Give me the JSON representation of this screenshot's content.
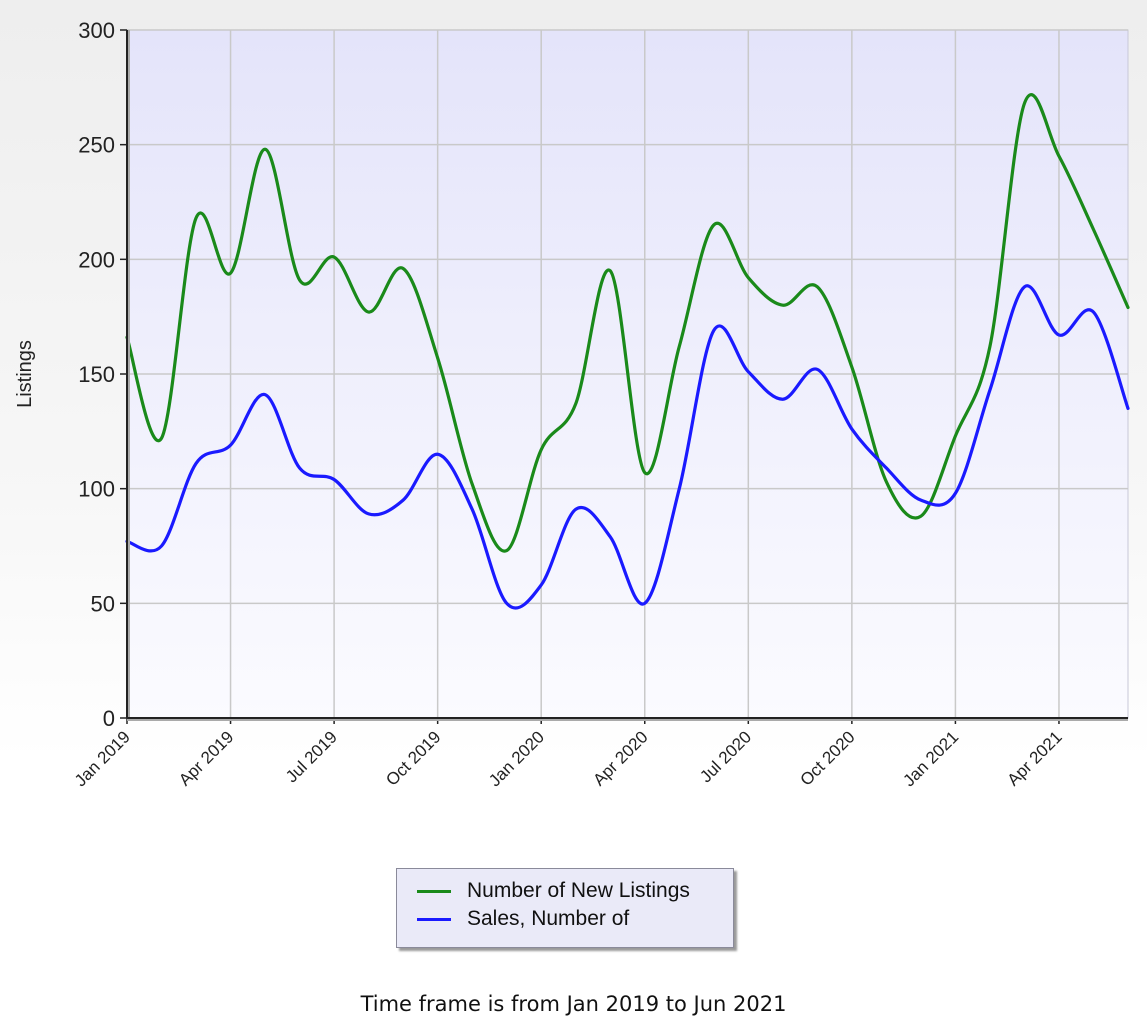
{
  "chart_data": {
    "type": "line",
    "ylabel": "Listings",
    "xlabel": "",
    "ylim": [
      0,
      300
    ],
    "y_ticks": [
      0,
      50,
      100,
      150,
      200,
      250,
      300
    ],
    "x_tick_labels": [
      "Jan 2019",
      "Apr 2019",
      "Jul 2019",
      "Oct 2019",
      "Jan 2020",
      "Apr 2020",
      "Jul 2020",
      "Oct 2020",
      "Jan 2021",
      "Apr 2021"
    ],
    "categories": [
      "Jan 2019",
      "Feb 2019",
      "Mar 2019",
      "Apr 2019",
      "May 2019",
      "Jun 2019",
      "Jul 2019",
      "Aug 2019",
      "Sep 2019",
      "Oct 2019",
      "Nov 2019",
      "Dec 2019",
      "Jan 2020",
      "Feb 2020",
      "Mar 2020",
      "Apr 2020",
      "May 2020",
      "Jun 2020",
      "Jul 2020",
      "Aug 2020",
      "Sep 2020",
      "Oct 2020",
      "Nov 2020",
      "Dec 2020",
      "Jan 2021",
      "Feb 2021",
      "Mar 2021",
      "Apr 2021",
      "May 2021",
      "Jun 2021"
    ],
    "grid": true,
    "legend_position": "bottom",
    "series": [
      {
        "name": "Number of New Listings",
        "color": "#1a8a1a",
        "values": [
          166,
          122,
          218,
          194,
          248,
          191,
          201,
          177,
          196,
          157,
          102,
          73,
          117,
          137,
          195,
          107,
          162,
          215,
          192,
          180,
          188,
          153,
          103,
          88,
          123,
          162,
          268,
          245,
          213,
          179
        ]
      },
      {
        "name": "Sales, Number of",
        "color": "#1a1aff",
        "values": [
          77,
          75,
          111,
          119,
          141,
          109,
          104,
          89,
          95,
          115,
          91,
          50,
          58,
          91,
          79,
          50,
          100,
          169,
          151,
          139,
          152,
          126,
          109,
          95,
          98,
          143,
          188,
          167,
          177,
          135
        ]
      }
    ]
  },
  "legend": {
    "items": [
      {
        "label": "Number of New Listings",
        "color": "#1a8a1a"
      },
      {
        "label": "Sales, Number of",
        "color": "#1a1aff"
      }
    ]
  },
  "footer": {
    "text": "Time frame is from Jan 2019 to Jun 2021"
  }
}
